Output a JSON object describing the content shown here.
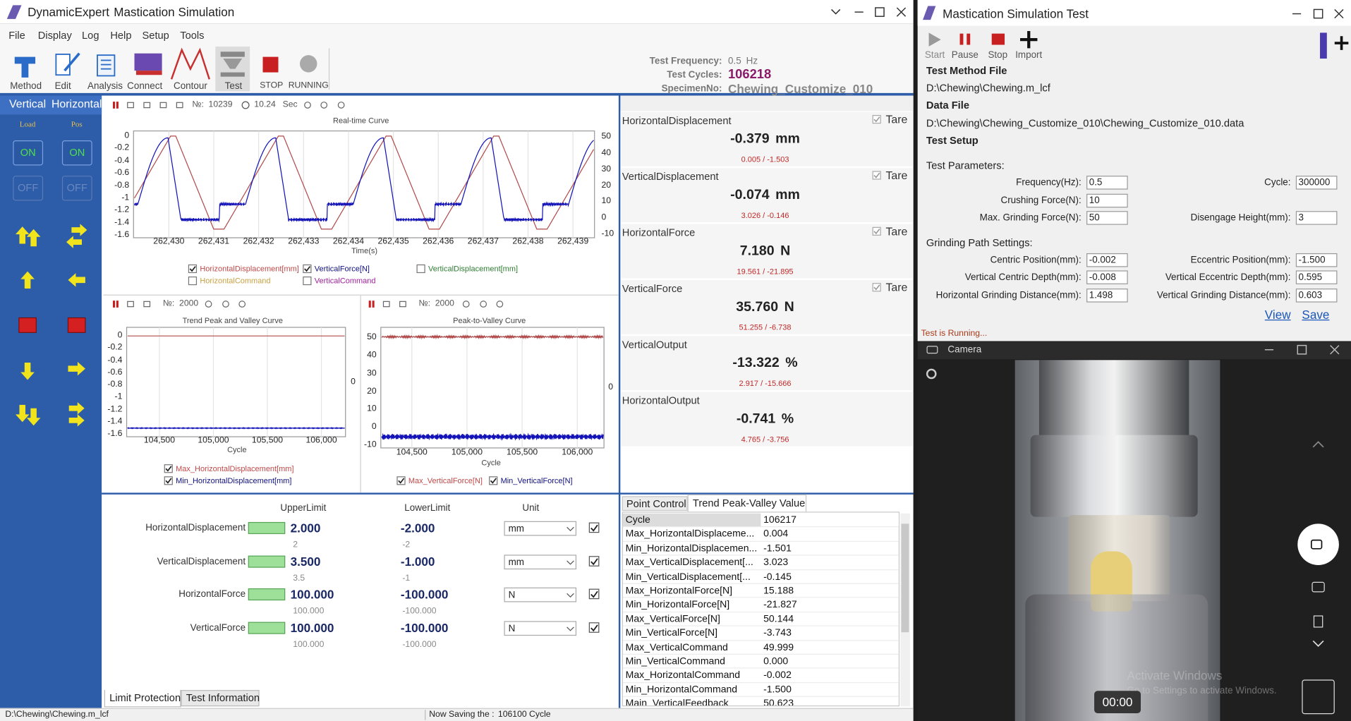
{
  "main": {
    "app": "DynamicExpert",
    "title": "Mastication Simulation",
    "menu": [
      "File",
      "Display",
      "Log",
      "Help",
      "Setup",
      "Tools"
    ],
    "toolbar": [
      "Method",
      "Edit",
      "Analysis",
      "Connect",
      "Contour",
      "Test",
      "STOP",
      "RUNNING"
    ],
    "info": {
      "frequency_label": "Test Frequency:",
      "frequency": "0.5",
      "frequency_unit": "Hz",
      "cycles_label": "Test Cycles:",
      "cycles": "106218",
      "specimen_label": "SpecimenNo:",
      "specimen": "Chewing_Customize_010"
    },
    "control": {
      "axes": [
        "Vertical",
        "Horizontal"
      ],
      "modes": [
        "Load",
        "Pos"
      ],
      "on": "ON",
      "off": "OFF"
    },
    "realtime_chart": {
      "count_label": "№:",
      "count": "10239",
      "time": "10.24",
      "time_unit": "Sec",
      "title": "Real-time Curve",
      "y_ticks": [
        "0",
        "-0.2",
        "-0.4",
        "-0.6",
        "-0.8",
        "-1",
        "-1.2",
        "-1.4",
        "-1.6"
      ],
      "y2_ticks": [
        "50",
        "40",
        "30",
        "20",
        "10",
        "0",
        "-10"
      ],
      "x_ticks": [
        "262,430",
        "262,431",
        "262,432",
        "262,433",
        "262,434",
        "262,435",
        "262,436",
        "262,437",
        "262,438",
        "262,439"
      ],
      "x_label": "Time(s)",
      "legend": [
        {
          "label": "HorizontalDisplacement[mm]",
          "checked": true,
          "color": "#c04848"
        },
        {
          "label": "VerticalForce[N]",
          "checked": true,
          "color": "#101080"
        },
        {
          "label": "VerticalDisplacement[mm]",
          "checked": false,
          "color": "#2e7d32"
        },
        {
          "label": "HorizontalCommand",
          "checked": false,
          "color": "#c8a040"
        },
        {
          "label": "VerticalCommand",
          "checked": false,
          "color": "#a0209c"
        }
      ]
    },
    "trend_chart": {
      "count_label": "№:",
      "count": "2000",
      "title": "Trend Peak and Valley Curve",
      "y_ticks": [
        "0",
        "-0.2",
        "-0.4",
        "-0.6",
        "-0.8",
        "-1",
        "-1.2",
        "-1.4",
        "-1.6"
      ],
      "y2_ticks": [
        "0"
      ],
      "x_ticks": [
        "104,500",
        "105,000",
        "105,500",
        "106,000"
      ],
      "x_label": "Cycle",
      "legend": [
        {
          "label": "Max_HorizontalDisplacement[mm]",
          "checked": true,
          "color": "#c04848"
        },
        {
          "label": "Min_HorizontalDisplacement[mm]",
          "checked": true,
          "color": "#101080"
        }
      ]
    },
    "peak_chart": {
      "count_label": "№:",
      "count": "2000",
      "title": "Peak-to-Valley Curve",
      "y_ticks": [
        "50",
        "40",
        "30",
        "20",
        "10",
        "0",
        "-10"
      ],
      "y2_ticks": [
        "0"
      ],
      "x_ticks": [
        "104,500",
        "105,000",
        "105,500",
        "106,000"
      ],
      "x_label": "Cycle",
      "legend": [
        {
          "label": "Max_VerticalForce[N]",
          "checked": true,
          "color": "#c04848"
        },
        {
          "label": "Min_VerticalForce[N]",
          "checked": true,
          "color": "#101080"
        }
      ]
    },
    "meters": [
      {
        "name": "HorizontalDisplacement",
        "value": "-0.379",
        "unit": "mm",
        "range": "0.005  /  -1.503",
        "tare": "Tare"
      },
      {
        "name": "VerticalDisplacement",
        "value": "-0.074",
        "unit": "mm",
        "range": "3.026  /  -0.146",
        "tare": "Tare"
      },
      {
        "name": "HorizontalForce",
        "value": "7.180",
        "unit": "N",
        "range": "19.561  /  -21.895",
        "tare": "Tare"
      },
      {
        "name": "VerticalForce",
        "value": "35.760",
        "unit": "N",
        "range": "51.255  /  -6.738",
        "tare": "Tare"
      },
      {
        "name": "VerticalOutput",
        "value": "-13.322",
        "unit": "%",
        "range": "2.917  /  -15.666"
      },
      {
        "name": "HorizontalOutput",
        "value": "-0.741",
        "unit": "%",
        "range": "4.765  /  -3.756"
      }
    ],
    "limits": {
      "headers": [
        "UpperLimit",
        "LowerLimit",
        "Unit"
      ],
      "rows": [
        {
          "name": "HorizontalDisplacement",
          "upper": "2.000",
          "lower": "-2.000",
          "unit": "mm",
          "upper_set": "2",
          "lower_set": "-2"
        },
        {
          "name": "VerticalDisplacement",
          "upper": "3.500",
          "lower": "-1.000",
          "unit": "mm",
          "upper_set": "3.5",
          "lower_set": "-1"
        },
        {
          "name": "HorizontalForce",
          "upper": "100.000",
          "lower": "-100.000",
          "unit": "N",
          "upper_set": "100.000",
          "lower_set": "-100.000"
        },
        {
          "name": "VerticalForce",
          "upper": "100.000",
          "lower": "-100.000",
          "unit": "N",
          "upper_set": "100.000",
          "lower_set": "-100.000"
        }
      ],
      "tabs": [
        "Limit Protection",
        "Test Information"
      ]
    },
    "peak_valley": {
      "tabs": [
        "Point Control",
        "Trend Peak-Valley Value"
      ],
      "rows": [
        [
          "Cycle",
          "106217"
        ],
        [
          "Max_HorizontalDisplaceme...",
          "0.004"
        ],
        [
          "Min_HorizontalDisplacemen...",
          "-1.501"
        ],
        [
          "Max_VerticalDisplacement[...",
          "3.023"
        ],
        [
          "Min_VerticalDisplacement[...",
          "-0.145"
        ],
        [
          "Max_HorizontalForce[N]",
          "15.188"
        ],
        [
          "Min_HorizontalForce[N]",
          "-21.827"
        ],
        [
          "Max_VerticalForce[N]",
          "50.144"
        ],
        [
          "Min_VerticalForce[N]",
          "-3.743"
        ],
        [
          "Max_VerticalCommand",
          "49.999"
        ],
        [
          "Min_VerticalCommand",
          "0.000"
        ],
        [
          "Max_HorizontalCommand",
          "-0.002"
        ],
        [
          "Min_HorizontalCommand",
          "-1.500"
        ],
        [
          "Main_VerticalFeedback",
          "50.623"
        ]
      ]
    },
    "status_bar": {
      "file": "D:\\Chewing\\Chewing.m_lcf",
      "saving": "Now Saving the :",
      "saving_cycle": "106100 Cycle"
    }
  },
  "test_window": {
    "title": "Mastication Simulation Test",
    "toolbar": [
      "Start",
      "Pause",
      "Stop",
      "Import"
    ],
    "method_file_label": "Test Method File",
    "method_file": "D:\\Chewing\\Chewing.m_lcf",
    "data_file_label": "Data File",
    "data_file": "D:\\Chewing\\Chewing_Customize_010\\Chewing_Customize_010.data",
    "setup": "Test Setup",
    "params_label": "Test Parameters:",
    "params_left": [
      {
        "label": "Frequency(Hz):",
        "value": "0.5"
      },
      {
        "label": "Crushing Force(N):",
        "value": "10"
      },
      {
        "label": "Max. Grinding Force(N):",
        "value": "50"
      }
    ],
    "params_right": [
      {
        "label": "Cycle:",
        "value": "300000"
      },
      {
        "label": "Disengage Height(mm):",
        "value": "3"
      }
    ],
    "grinding_label": "Grinding Path Settings:",
    "grinding_left": [
      {
        "label": "Centric Position(mm):",
        "value": "-0.002"
      },
      {
        "label": "Vertical Centric Depth(mm):",
        "value": "-0.008"
      },
      {
        "label": "Horizontal Grinding Distance(mm):",
        "value": "1.498"
      }
    ],
    "grinding_right": [
      {
        "label": "Eccentric Position(mm):",
        "value": "-1.500"
      },
      {
        "label": "Vertical Eccentric Depth(mm):",
        "value": "0.595"
      },
      {
        "label": "Vertical Grinding Distance(mm):",
        "value": "0.603"
      }
    ],
    "links": [
      "View",
      "Save"
    ],
    "status": "Test is Running..."
  },
  "camera": {
    "title": "Camera",
    "time": "00:00",
    "watermark": [
      "Activate Windows",
      "Go to Settings to activate Windows."
    ]
  }
}
